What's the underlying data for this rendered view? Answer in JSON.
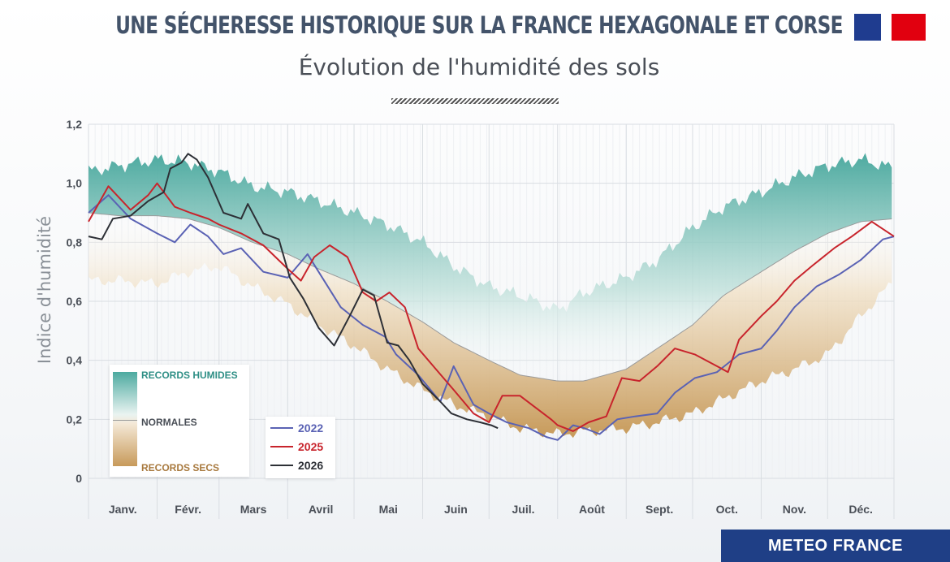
{
  "header": {
    "title": "UNE SÉCHERESSE HISTORIQUE SUR LA FRANCE HEXAGONALE ET CORSE",
    "subtitle": "Évolution de l'humidité des sols"
  },
  "footer": {
    "brand": "METEO FRANCE"
  },
  "legend_band": {
    "wet_label": "RECORDS HUMIDES",
    "normal_label": "NORMALES",
    "dry_label": "RECORDS SECS"
  },
  "legend_series": [
    {
      "label": "2022",
      "color": "#5a62b4"
    },
    {
      "label": "2025",
      "color": "#c8242c"
    },
    {
      "label": "2026",
      "color": "#2d3036"
    }
  ],
  "colors": {
    "wet_record": "#4daaa0",
    "dry_record": "#c79a5a",
    "normal_line": "#9a9a9a",
    "grid": "#d9dde2",
    "footer_bg": "#1f3f86"
  },
  "chart_data": {
    "type": "line",
    "ylabel": "Indice d'humidité",
    "ylim": [
      0,
      1.2
    ],
    "yticks": [
      0,
      0.2,
      0.4,
      0.6,
      0.8,
      1.0,
      1.2
    ],
    "ytick_labels": [
      "0",
      "0,2",
      "0,4",
      "0,6",
      "0,8",
      "1,0",
      "1,2"
    ],
    "x_unit": "day of year",
    "xlim": [
      1,
      365
    ],
    "months": [
      "Janv.",
      "Févr.",
      "Mars",
      "Avril",
      "Mai",
      "Juin",
      "Juil.",
      "Août",
      "Sept.",
      "Oct.",
      "Nov.",
      "Déc."
    ],
    "month_starts": [
      1,
      32,
      60,
      91,
      121,
      152,
      182,
      213,
      244,
      274,
      305,
      335
    ],
    "grid": true,
    "band": {
      "x": [
        1,
        15,
        32,
        46,
        60,
        75,
        91,
        105,
        121,
        136,
        152,
        166,
        182,
        196,
        213,
        225,
        244,
        258,
        274,
        288,
        305,
        320,
        335,
        350,
        365
      ],
      "upper": [
        1.04,
        1.06,
        1.08,
        1.07,
        1.04,
        0.99,
        0.97,
        0.94,
        0.9,
        0.86,
        0.8,
        0.72,
        0.65,
        0.62,
        0.57,
        0.63,
        0.68,
        0.74,
        0.85,
        0.92,
        0.97,
        1.02,
        1.06,
        1.08,
        1.05
      ],
      "normal": [
        0.9,
        0.89,
        0.89,
        0.88,
        0.85,
        0.8,
        0.76,
        0.71,
        0.66,
        0.6,
        0.53,
        0.46,
        0.4,
        0.35,
        0.33,
        0.33,
        0.37,
        0.44,
        0.52,
        0.62,
        0.7,
        0.77,
        0.83,
        0.87,
        0.88
      ],
      "lower": [
        0.67,
        0.67,
        0.66,
        0.7,
        0.72,
        0.65,
        0.59,
        0.52,
        0.45,
        0.37,
        0.3,
        0.25,
        0.21,
        0.17,
        0.15,
        0.16,
        0.17,
        0.19,
        0.22,
        0.27,
        0.33,
        0.37,
        0.42,
        0.55,
        0.67
      ]
    },
    "series": [
      {
        "name": "2022",
        "x": [
          1,
          10,
          20,
          32,
          40,
          47,
          55,
          62,
          70,
          80,
          91,
          100,
          105,
          115,
          125,
          135,
          140,
          150,
          160,
          166,
          175,
          182,
          190,
          200,
          208,
          213,
          220,
          225,
          232,
          240,
          248,
          258,
          266,
          275,
          285,
          295,
          305,
          312,
          320,
          330,
          340,
          350,
          360,
          365
        ],
        "y": [
          0.9,
          0.96,
          0.88,
          0.83,
          0.8,
          0.86,
          0.82,
          0.76,
          0.78,
          0.7,
          0.68,
          0.76,
          0.7,
          0.58,
          0.52,
          0.48,
          0.42,
          0.35,
          0.26,
          0.38,
          0.25,
          0.22,
          0.19,
          0.17,
          0.14,
          0.13,
          0.18,
          0.17,
          0.15,
          0.2,
          0.21,
          0.22,
          0.29,
          0.34,
          0.36,
          0.42,
          0.44,
          0.5,
          0.58,
          0.65,
          0.69,
          0.74,
          0.81,
          0.82
        ]
      },
      {
        "name": "2025",
        "x": [
          1,
          10,
          20,
          28,
          32,
          40,
          47,
          55,
          60,
          70,
          80,
          91,
          97,
          103,
          110,
          118,
          125,
          131,
          137,
          144,
          150,
          158,
          166,
          175,
          182,
          188,
          196,
          203,
          210,
          213,
          220,
          227,
          235,
          242,
          250,
          258,
          266,
          275,
          285,
          290,
          295,
          305,
          312,
          320,
          328,
          338,
          346,
          355,
          365
        ],
        "y": [
          0.87,
          0.99,
          0.91,
          0.96,
          1.0,
          0.92,
          0.9,
          0.88,
          0.86,
          0.83,
          0.79,
          0.71,
          0.67,
          0.75,
          0.79,
          0.75,
          0.63,
          0.6,
          0.63,
          0.58,
          0.44,
          0.37,
          0.3,
          0.22,
          0.19,
          0.28,
          0.28,
          0.24,
          0.2,
          0.18,
          0.16,
          0.19,
          0.21,
          0.34,
          0.33,
          0.38,
          0.44,
          0.42,
          0.38,
          0.36,
          0.47,
          0.55,
          0.6,
          0.67,
          0.72,
          0.78,
          0.82,
          0.87,
          0.82
        ]
      },
      {
        "name": "2026",
        "x": [
          1,
          7,
          12,
          20,
          28,
          35,
          38,
          43,
          46,
          50,
          55,
          62,
          70,
          73,
          80,
          87,
          92,
          98,
          105,
          112,
          119,
          125,
          130,
          136,
          141,
          146,
          152,
          160,
          165,
          172,
          178,
          183,
          186
        ],
        "y": [
          0.82,
          0.81,
          0.88,
          0.89,
          0.94,
          0.97,
          1.05,
          1.07,
          1.1,
          1.08,
          1.02,
          0.9,
          0.88,
          0.93,
          0.83,
          0.81,
          0.68,
          0.61,
          0.51,
          0.45,
          0.55,
          0.64,
          0.62,
          0.46,
          0.45,
          0.4,
          0.32,
          0.26,
          0.22,
          0.2,
          0.19,
          0.18,
          0.17
        ]
      }
    ]
  }
}
